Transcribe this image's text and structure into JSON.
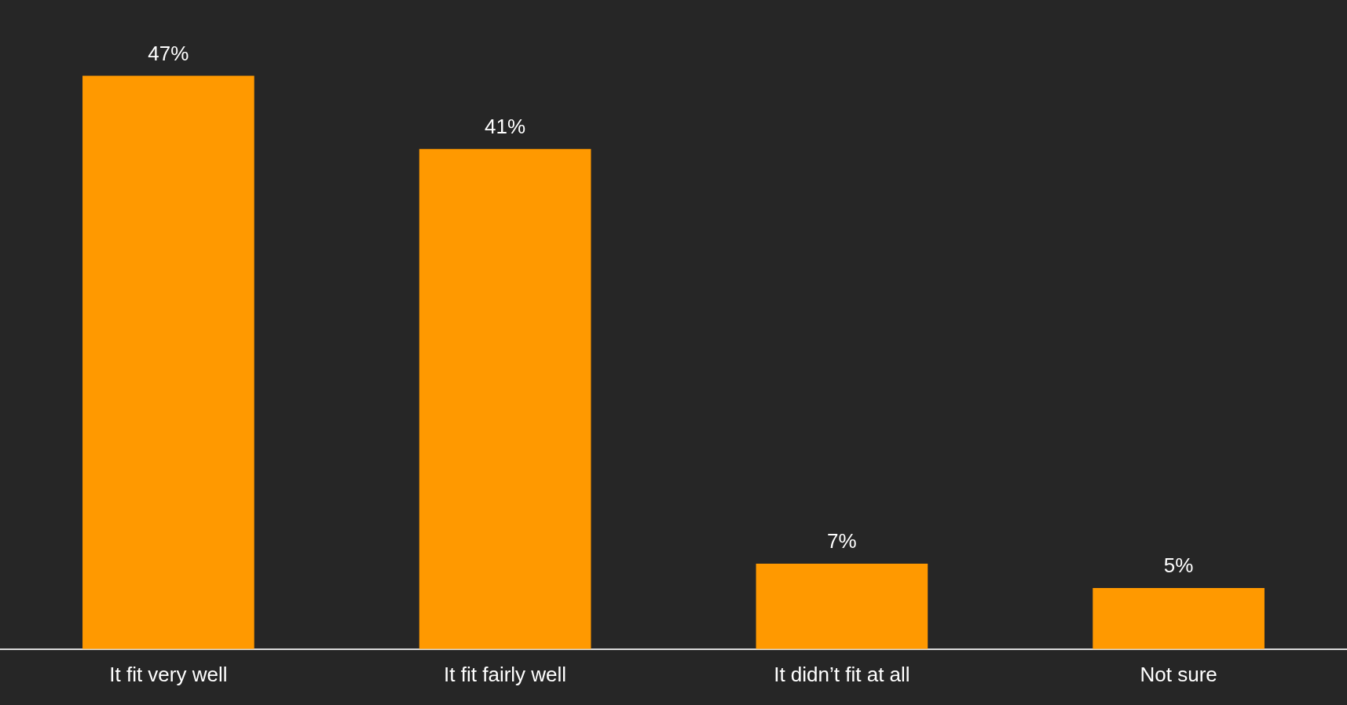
{
  "chart_data": {
    "type": "bar",
    "categories": [
      "It fit very well",
      "It fit fairly well",
      "It didn’t fit at all",
      "Not sure"
    ],
    "values": [
      47,
      41,
      7,
      5
    ],
    "value_labels": [
      "47%",
      "41%",
      "7%",
      "5%"
    ],
    "color": "#ff9900",
    "legend": false,
    "tick_labels": "x"
  }
}
